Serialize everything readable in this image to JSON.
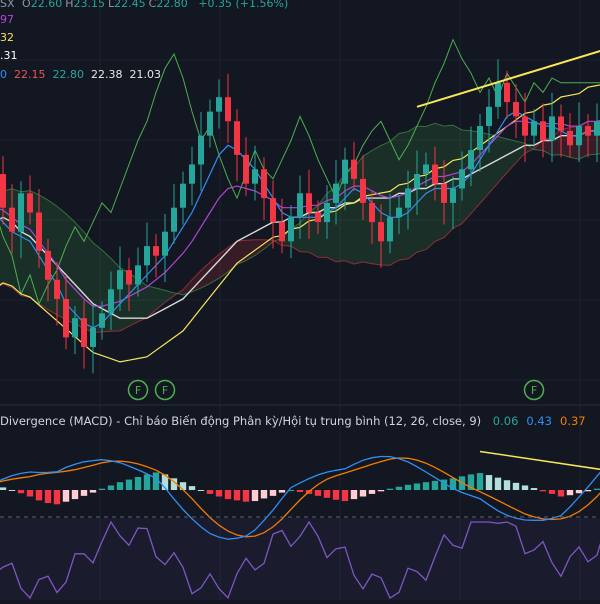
{
  "legend": {
    "symbol_tail": "SX",
    "ohlc": [
      {
        "key": "O",
        "value": "22.60"
      },
      {
        "key": "H",
        "value": "23.15"
      },
      {
        "key": "L",
        "value": "22.45"
      },
      {
        "key": "C",
        "value": "22.80"
      }
    ],
    "change": "+0.35 (+1.56%)",
    "line2": "97",
    "line3": "32",
    "line4": ".31",
    "line5": [
      {
        "value": "0",
        "color": "#2f8ff5"
      },
      {
        "value": "22.15",
        "color": "#ef5350"
      },
      {
        "value": "22.80",
        "color": "#26a69a"
      },
      {
        "value": "22.38",
        "color": "#e8e8e8"
      },
      {
        "value": "21.03",
        "color": "#e8e8e8"
      }
    ]
  },
  "macd_legend": {
    "title": "Divergence (MACD) - Chỉ báo Biến động Phân kỳ/Hội tụ trung bình (12, 26, close, 9)",
    "values": [
      {
        "value": "0.06",
        "color": "#26a69a"
      },
      {
        "value": "0.43",
        "color": "#2f8ff5"
      },
      {
        "value": "0.37",
        "color": "#f57c00"
      }
    ]
  },
  "markers": [
    "F",
    "F",
    "F"
  ],
  "colors": {
    "up": "#26a69a",
    "down": "#f23645",
    "ma_fast": "#2f8ff5",
    "ma_mid": "#b046d6",
    "ma_yellow": "#f7e65a",
    "ma_white": "#d8d8d8",
    "span": "#4caf50",
    "trend": "#f7e65a",
    "rsi": "#7e57c2",
    "background": "#131722"
  },
  "chart_data": [
    {
      "type": "candlestick",
      "title": "",
      "ohlc_last": {
        "open": 22.6,
        "high": 23.15,
        "low": 22.45,
        "close": 22.8,
        "change": 0.35,
        "change_pct": 1.56
      },
      "close": [
        21.8,
        21.1,
        20.6,
        21.4,
        21.0,
        20.2,
        19.6,
        19.2,
        18.4,
        18.8,
        18.2,
        18.6,
        18.9,
        19.4,
        19.8,
        19.5,
        19.9,
        20.3,
        20.1,
        20.6,
        21.1,
        21.6,
        22.0,
        22.6,
        23.1,
        23.4,
        22.9,
        22.2,
        21.6,
        21.9,
        21.3,
        20.8,
        20.4,
        20.9,
        21.4,
        21.0,
        20.8,
        21.2,
        21.6,
        22.1,
        21.7,
        21.2,
        20.8,
        20.4,
        20.9,
        21.1,
        21.5,
        21.8,
        22.0,
        21.6,
        21.2,
        21.5,
        21.9,
        22.3,
        22.8,
        23.2,
        23.7,
        23.3,
        23.0,
        22.6,
        22.9,
        22.5,
        23.0,
        22.7,
        22.4,
        22.8,
        22.6,
        22.9,
        22.8
      ],
      "ma_fast": [
        21.0,
        20.8,
        20.6,
        20.5,
        20.4,
        20.1,
        19.8,
        19.5,
        19.1,
        18.9,
        18.7,
        18.6,
        18.7,
        18.9,
        19.1,
        19.3,
        19.5,
        19.7,
        19.9,
        20.1,
        20.4,
        20.7,
        21.0,
        21.4,
        21.8,
        22.2,
        22.4,
        22.3,
        22.1,
        21.9,
        21.6,
        21.3,
        21.0,
        20.9,
        20.9,
        20.9,
        20.9,
        21.0,
        21.1,
        21.3,
        21.5,
        21.4,
        21.2,
        21.0,
        20.9,
        20.9,
        21.0,
        21.2,
        21.4,
        21.5,
        21.5,
        21.5,
        21.6,
        21.8,
        22.1,
        22.4,
        22.7,
        23.0,
        23.1,
        23.0,
        22.9,
        22.8,
        22.8,
        22.7,
        22.6,
        22.6,
        22.7,
        22.7,
        22.8
      ],
      "ma_white": [
        20.8,
        20.9,
        20.8,
        20.6,
        20.5,
        20.3,
        20.1,
        19.9,
        19.7,
        19.5,
        19.3,
        19.1,
        19.0,
        18.9,
        18.8,
        18.8,
        18.8,
        18.8,
        18.9,
        19.0,
        19.1,
        19.2,
        19.4,
        19.6,
        19.8,
        20.0,
        20.2,
        20.4,
        20.5,
        20.6,
        20.7,
        20.8,
        20.8,
        20.9,
        20.9,
        21.0,
        21.0,
        21.1,
        21.1,
        21.2,
        21.2,
        21.3,
        21.3,
        21.3,
        21.3,
        21.4,
        21.4,
        21.5,
        21.5,
        21.6,
        21.6,
        21.7,
        21.7,
        21.8,
        21.9,
        22.0,
        22.1,
        22.2,
        22.3,
        22.4,
        22.4,
        22.5,
        22.5,
        22.6,
        22.6,
        22.6,
        22.7,
        22.7,
        22.7
      ],
      "trendline": [
        {
          "x": 47,
          "y": 23.2
        },
        {
          "x": 68,
          "y": 24.4
        }
      ],
      "markers": [
        {
          "x": 16,
          "label": "F"
        },
        {
          "x": 19,
          "label": "F"
        },
        {
          "x": 60,
          "label": "F"
        }
      ]
    },
    {
      "type": "macd",
      "title": "Divergence (MACD) - Chỉ báo Biến động Phân kỳ/Hội tụ trung bình (12, 26, close, 9)",
      "params": [
        12,
        26,
        "close",
        9
      ],
      "last": {
        "histogram": 0.06,
        "macd": 0.43,
        "signal": 0.37
      },
      "histogram": [
        0.08,
        0.04,
        0.0,
        -0.05,
        -0.1,
        -0.16,
        -0.2,
        -0.22,
        -0.18,
        -0.14,
        -0.09,
        -0.04,
        0.02,
        0.07,
        0.12,
        0.16,
        0.2,
        0.24,
        0.27,
        0.24,
        0.18,
        0.12,
        0.06,
        0.0,
        -0.06,
        -0.1,
        -0.14,
        -0.16,
        -0.18,
        -0.17,
        -0.13,
        -0.09,
        -0.04,
        0.0,
        -0.03,
        -0.06,
        -0.09,
        -0.12,
        -0.15,
        -0.17,
        -0.14,
        -0.1,
        -0.06,
        -0.02,
        0.02,
        0.05,
        0.08,
        0.1,
        0.12,
        0.14,
        0.16,
        0.18,
        0.21,
        0.24,
        0.26,
        0.23,
        0.19,
        0.15,
        0.11,
        0.07,
        0.03,
        -0.02,
        -0.06,
        -0.1,
        -0.08,
        -0.05,
        -0.02,
        0.02,
        0.06
      ]
    },
    {
      "type": "line",
      "title": ""
    }
  ]
}
